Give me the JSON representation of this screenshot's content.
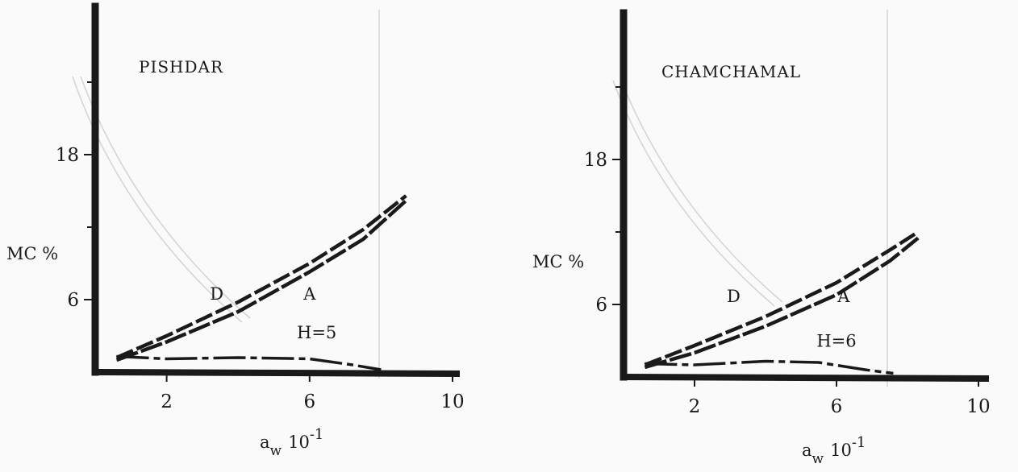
{
  "chart_data": [
    {
      "type": "line",
      "title": "PISHDAR",
      "ylabel": "MC %",
      "xlabel": "aw 10-1",
      "x_ticks": [
        2,
        6,
        10
      ],
      "y_ticks": [
        6,
        18
      ],
      "xlim": [
        0,
        10
      ],
      "ylim": [
        0,
        30
      ],
      "annotations": [
        {
          "text": "D",
          "x": 3.4,
          "y": 6
        },
        {
          "text": "A",
          "x": 6.0,
          "y": 6
        },
        {
          "text": "H=5",
          "x": 6.2,
          "y": 2.8
        }
      ],
      "series": [
        {
          "name": "D",
          "role": "upper",
          "style": "dashed",
          "x": [
            0.6,
            2,
            4,
            6,
            7.5,
            8.7
          ],
          "y": [
            1.2,
            3.0,
            5.8,
            9.0,
            11.8,
            14.6
          ]
        },
        {
          "name": "A",
          "role": "upper",
          "style": "dashed",
          "x": [
            0.6,
            2,
            4,
            6,
            7.5,
            8.7
          ],
          "y": [
            1.0,
            2.5,
            5.0,
            8.3,
            11.0,
            14.2
          ]
        },
        {
          "role": "lower",
          "style": "dashed",
          "x": [
            0.6,
            2,
            4,
            6,
            7.2,
            8.0
          ],
          "y": [
            1.3,
            1.1,
            1.2,
            1.1,
            0.6,
            0.2
          ]
        }
      ]
    },
    {
      "type": "line",
      "title": "CHAMCHAMAL",
      "ylabel": "MC %",
      "xlabel": "aw 10-1",
      "x_ticks": [
        2,
        6,
        10
      ],
      "y_ticks": [
        6,
        18
      ],
      "xlim": [
        0,
        10
      ],
      "ylim": [
        0,
        30
      ],
      "annotations": [
        {
          "text": "D",
          "x": 3.1,
          "y": 6.2
        },
        {
          "text": "A",
          "x": 6.2,
          "y": 6.2
        },
        {
          "text": "H=6",
          "x": 6.0,
          "y": 2.5
        }
      ],
      "series": [
        {
          "name": "D",
          "role": "upper",
          "style": "dashed",
          "x": [
            0.6,
            2,
            4,
            6,
            7.5,
            8.3
          ],
          "y": [
            1.0,
            2.6,
            5.0,
            7.8,
            10.5,
            12.0
          ]
        },
        {
          "name": "A",
          "role": "upper",
          "style": "dashed",
          "x": [
            0.6,
            2,
            4,
            6,
            7.5,
            8.3
          ],
          "y": [
            0.8,
            2.0,
            4.2,
            6.8,
            9.6,
            11.5
          ]
        },
        {
          "role": "lower",
          "style": "dashed",
          "x": [
            0.6,
            2,
            4,
            5.5,
            6.8,
            7.6
          ],
          "y": [
            1.1,
            1.0,
            1.3,
            1.2,
            0.6,
            0.3
          ]
        }
      ]
    }
  ]
}
